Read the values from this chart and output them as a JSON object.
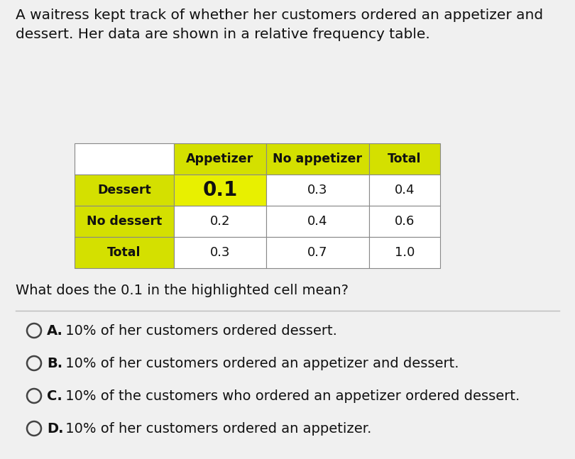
{
  "title_text": "A waitress kept track of whether her customers ordered an appetizer and\ndessert. Her data are shown in a relative frequency table.",
  "question_text": "What does the 0.1 in the highlighted cell mean?",
  "col_headers": [
    "",
    "Appetizer",
    "No appetizer",
    "Total"
  ],
  "row_headers": [
    "Dessert",
    "No dessert",
    "Total"
  ],
  "table_data": [
    [
      "0.1",
      "0.3",
      "0.4"
    ],
    [
      "0.2",
      "0.4",
      "0.6"
    ],
    [
      "0.3",
      "0.7",
      "1.0"
    ]
  ],
  "highlighted_cell": [
    0,
    0
  ],
  "yellow_bg": "#d4e000",
  "highlight_bg": "#e8f000",
  "normal_bg": "#ffffff",
  "total_col_bg": "#ffffff",
  "header_empty_bg": "#ffffff",
  "answer_options": [
    {
      "letter": "A",
      "text": "10% of her customers ordered dessert."
    },
    {
      "letter": "B",
      "text": "10% of her customers ordered an appetizer and dessert."
    },
    {
      "letter": "C",
      "text": "10% of the customers who ordered an appetizer ordered dessert."
    },
    {
      "letter": "D",
      "text": "10% of her customers ordered an appetizer."
    }
  ],
  "bg_color": "#f0f0f0",
  "fig_width": 8.1,
  "fig_height": 6.47,
  "dpi": 100
}
